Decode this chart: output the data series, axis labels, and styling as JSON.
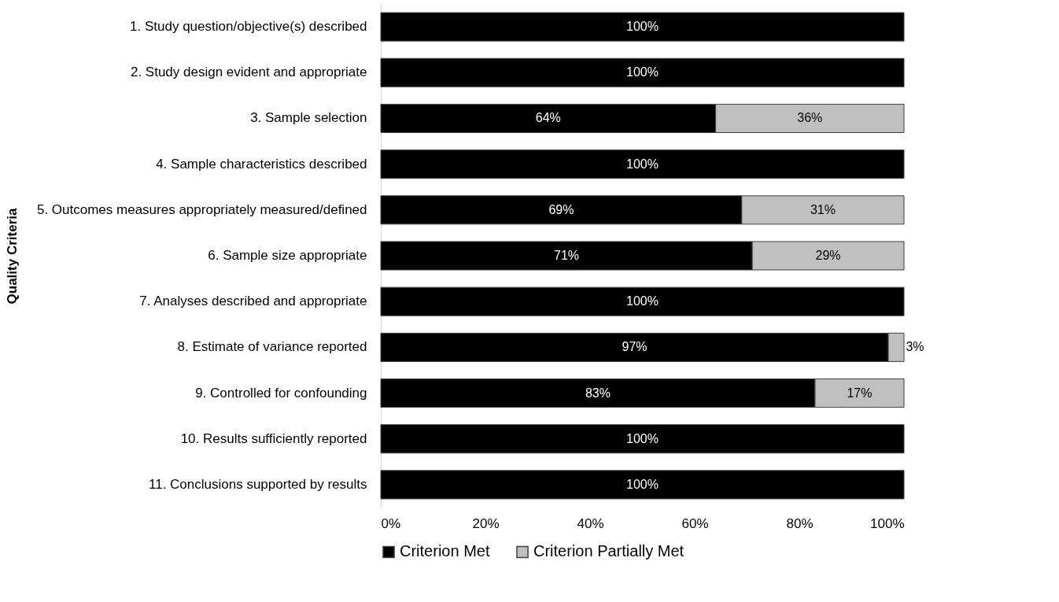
{
  "chart_data": {
    "type": "bar",
    "orientation": "horizontal",
    "stacked": true,
    "categories": [
      "1. Study question/objective(s) described",
      "2. Study design evident and appropriate",
      "3. Sample selection",
      "4. Sample characteristics described",
      "5. Outcomes measures appropriately measured/defined",
      "6. Sample size appropriate",
      "7. Analyses described and appropriate",
      "8. Estimate of variance reported",
      "9. Controlled for confounding",
      "10. Results sufficiently reported",
      "11. Conclusions supported by results"
    ],
    "series": [
      {
        "name": "Criterion Met",
        "color": "#000000",
        "values": [
          100,
          100,
          64,
          100,
          69,
          71,
          100,
          97,
          83,
          100,
          100
        ],
        "value_labels": [
          "100%",
          "100%",
          "64%",
          "100%",
          "69%",
          "71%",
          "100%",
          "97%",
          "83%",
          "100%",
          "100%"
        ]
      },
      {
        "name": "Criterion Partially Met",
        "color": "#c0c0c0",
        "values": [
          null,
          null,
          36,
          null,
          31,
          29,
          null,
          3,
          17,
          null,
          null
        ],
        "value_labels": [
          null,
          null,
          "36%",
          null,
          "31%",
          "29%",
          null,
          "3%",
          "17%",
          null,
          null
        ]
      }
    ],
    "ylabel": "Quality Criteria",
    "xlim": [
      0,
      100
    ],
    "xticks": [
      {
        "value": 0,
        "label": "0%"
      },
      {
        "value": 20,
        "label": "20%"
      },
      {
        "value": 40,
        "label": "40%"
      },
      {
        "value": 60,
        "label": "60%"
      },
      {
        "value": 80,
        "label": "80%"
      },
      {
        "value": 100,
        "label": "100%"
      }
    ],
    "grid": false,
    "legend": "bottom"
  }
}
